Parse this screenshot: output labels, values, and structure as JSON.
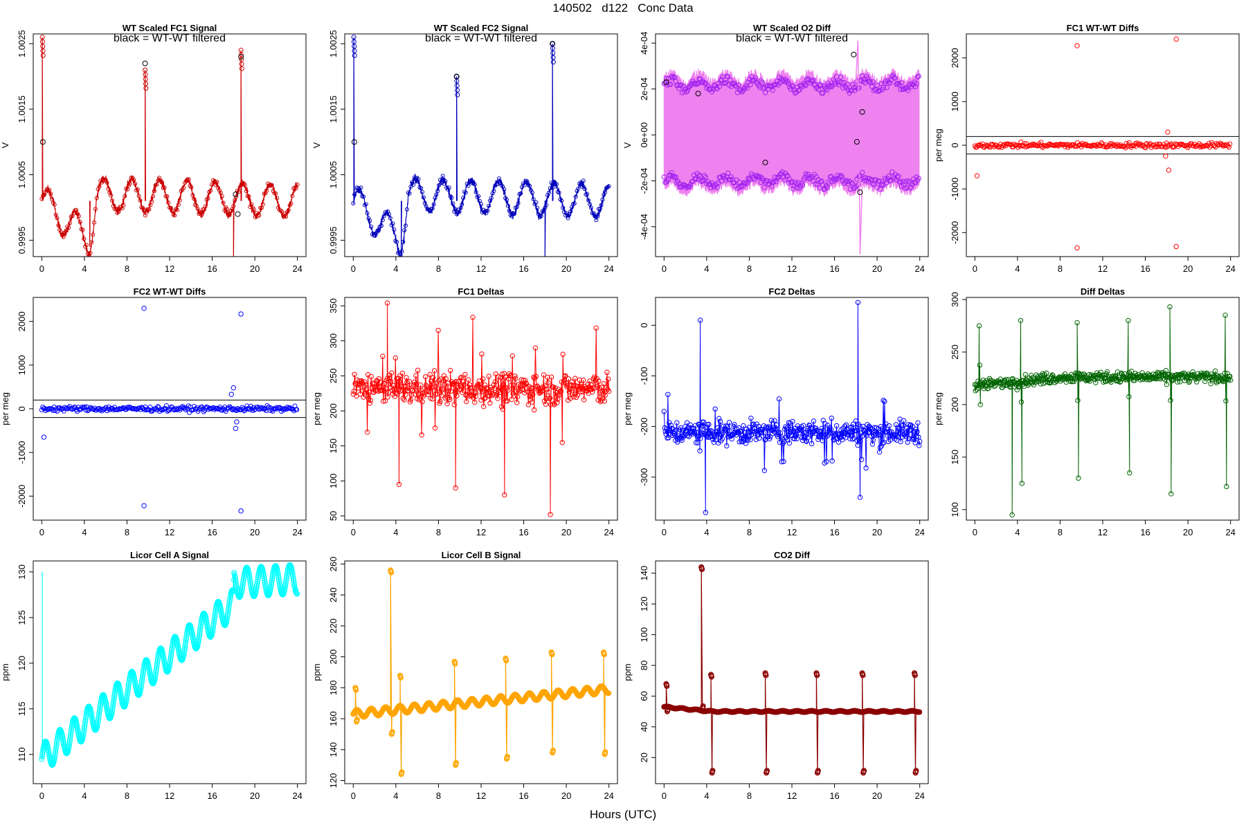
{
  "figure": {
    "title": "140502   d122   Conc Data",
    "xlabel": "Hours (UTC)"
  },
  "chart_data": [
    {
      "id": "fc1-signal",
      "type": "line",
      "title": "WT Scaled FC1 Signal",
      "subtitle": "black = WT-WT filtered",
      "ylabel": "V",
      "xlim": [
        -0.8,
        24.8
      ],
      "ylim": [
        0.99925,
        1.00265
      ],
      "xticks": [
        0,
        4,
        8,
        12,
        16,
        20,
        24
      ],
      "xtick_labels": [
        "0",
        "4",
        "8",
        "12",
        "16",
        "20",
        "24"
      ],
      "yticks": [
        0.9995,
        1.0005,
        1.0015,
        1.0025
      ],
      "ytick_labels": [
        "0.9995",
        "1.0005",
        "1.0015",
        "1.0025"
      ],
      "color": "#cc0000",
      "style": "signal",
      "base": 1.0001,
      "amp": 0.00025,
      "period": 2.6,
      "noise": 6e-05,
      "trend": [
        [
          0,
          0
        ],
        [
          4.5,
          -0.0006
        ],
        [
          5.2,
          0.0001
        ],
        [
          24,
          0
        ]
      ],
      "spikes": [
        [
          0.05,
          1.0026
        ],
        [
          9.7,
          1.0021
        ],
        [
          18.7,
          1.0024
        ]
      ],
      "dips": [
        [
          4.5,
          0.9994
        ],
        [
          18.0,
          0.9992
        ]
      ],
      "filtered": [
        [
          0.1,
          1.001
        ],
        [
          9.7,
          1.0022
        ],
        [
          18.7,
          1.0023
        ],
        [
          18.2,
          1.0002
        ],
        [
          18.4,
          0.9999
        ]
      ]
    },
    {
      "id": "fc2-signal",
      "type": "line",
      "title": "WT Scaled FC2 Signal",
      "subtitle": "black = WT-WT filtered",
      "ylabel": "V",
      "xlim": [
        -0.8,
        24.8
      ],
      "ylim": [
        0.99925,
        1.00265
      ],
      "xticks": [
        0,
        4,
        8,
        12,
        16,
        20,
        24
      ],
      "xtick_labels": [
        "0",
        "4",
        "8",
        "12",
        "16",
        "20",
        "24"
      ],
      "yticks": [
        0.9995,
        1.0005,
        1.0015,
        1.0025
      ],
      "ytick_labels": [
        "0.9995",
        "1.0005",
        "1.0015",
        "1.0025"
      ],
      "color": "#0000bb",
      "style": "signal",
      "base": 1.0001,
      "amp": 0.00025,
      "period": 2.6,
      "noise": 6e-05,
      "trend": [
        [
          0,
          0
        ],
        [
          4.5,
          -0.0006
        ],
        [
          5.2,
          0.0001
        ],
        [
          24,
          0
        ]
      ],
      "spikes": [
        [
          0.05,
          1.0026
        ],
        [
          9.7,
          1.002
        ],
        [
          18.7,
          1.0025
        ]
      ],
      "dips": [
        [
          4.5,
          0.9993
        ],
        [
          18.0,
          0.9992
        ]
      ],
      "filtered": [
        [
          0.1,
          1.001
        ],
        [
          9.7,
          1.002
        ],
        [
          18.7,
          1.0025
        ]
      ]
    },
    {
      "id": "o2-diff",
      "type": "line",
      "title": "WT Scaled O2 Diff",
      "subtitle": "black = WT-WT filtered",
      "ylabel": "V",
      "xlim": [
        -0.8,
        24.8
      ],
      "ylim": [
        -0.00053,
        0.00044
      ],
      "xticks": [
        0,
        4,
        8,
        12,
        16,
        20,
        24
      ],
      "xtick_labels": [
        "0",
        "4",
        "8",
        "12",
        "16",
        "20",
        "24"
      ],
      "yticks": [
        -0.0004,
        -0.0002,
        0,
        0.0002,
        0.0004
      ],
      "ytick_labels": [
        "-4e-04",
        "-2e-04",
        "0e+00",
        "2e-04",
        "4e-04"
      ],
      "color": "#ee82ee",
      "point_color": "#a020f0",
      "style": "band",
      "upper": 0.00023,
      "lower": -0.00021,
      "amp": 2e-05,
      "period": 2.6,
      "filtered": [
        [
          0.2,
          0.00023
        ],
        [
          3.2,
          0.00018
        ],
        [
          9.5,
          -0.00012
        ],
        [
          17.8,
          0.00035
        ],
        [
          18.1,
          -3e-05
        ],
        [
          18.4,
          -0.00025
        ],
        [
          18.6,
          0.0001
        ]
      ]
    },
    {
      "id": "fc1-wtwt",
      "type": "scatter",
      "title": "FC1 WT-WT Diffs",
      "ylabel": "per meg",
      "xlim": [
        -0.8,
        24.8
      ],
      "ylim": [
        -2550,
        2550
      ],
      "xticks": [
        0,
        4,
        8,
        12,
        16,
        20,
        24
      ],
      "xtick_labels": [
        "0",
        "4",
        "8",
        "12",
        "16",
        "20",
        "24"
      ],
      "yticks": [
        -2000,
        -1000,
        0,
        1000,
        2000
      ],
      "ytick_labels": [
        "-2000",
        "-1000",
        "0",
        "1000",
        "2000"
      ],
      "color": "#ff0000",
      "style": "diffs",
      "spread": 55,
      "hlines": [
        200,
        -200
      ],
      "outliers": [
        [
          9.6,
          2280
        ],
        [
          18.9,
          2430
        ],
        [
          9.6,
          -2350
        ],
        [
          18.9,
          -2320
        ],
        [
          0.2,
          -700
        ],
        [
          18.1,
          300
        ],
        [
          18.2,
          -570
        ],
        [
          17.9,
          -250
        ]
      ]
    },
    {
      "id": "fc2-wtwt",
      "type": "scatter",
      "title": "FC2 WT-WT Diffs",
      "ylabel": "per meg",
      "xlim": [
        -0.8,
        24.8
      ],
      "ylim": [
        -2550,
        2550
      ],
      "xticks": [
        0,
        4,
        8,
        12,
        16,
        20,
        24
      ],
      "xtick_labels": [
        "0",
        "4",
        "8",
        "12",
        "16",
        "20",
        "24"
      ],
      "yticks": [
        -2000,
        -1000,
        0,
        1000,
        2000
      ],
      "ytick_labels": [
        "-2000",
        "-1000",
        "0",
        "1000",
        "2000"
      ],
      "color": "#0000ff",
      "style": "diffs",
      "spread": 55,
      "hlines": [
        200,
        -200
      ],
      "outliers": [
        [
          9.6,
          2300
        ],
        [
          18.7,
          2170
        ],
        [
          9.6,
          -2220
        ],
        [
          18.7,
          -2340
        ],
        [
          0.2,
          -650
        ],
        [
          18.0,
          480
        ],
        [
          18.2,
          -450
        ],
        [
          17.8,
          330
        ],
        [
          18.3,
          -300
        ]
      ]
    },
    {
      "id": "fc1-deltas",
      "type": "line",
      "title": "FC1 Deltas",
      "ylabel": "per meg",
      "xlim": [
        -0.8,
        24.8
      ],
      "ylim": [
        44,
        362
      ],
      "xticks": [
        0,
        4,
        8,
        12,
        16,
        20,
        24
      ],
      "xtick_labels": [
        "0",
        "4",
        "8",
        "12",
        "16",
        "20",
        "24"
      ],
      "yticks": [
        50,
        100,
        150,
        200,
        250,
        300,
        350
      ],
      "ytick_labels": [
        "50",
        "100",
        "150",
        "200",
        "250",
        "300",
        "350"
      ],
      "color": "#ff0000",
      "style": "noisy",
      "base": 232,
      "noise": 22,
      "extremes": [
        [
          3.2,
          354
        ],
        [
          18.5,
          52
        ],
        [
          4.3,
          95
        ],
        [
          9.6,
          90
        ],
        [
          14.2,
          80
        ]
      ]
    },
    {
      "id": "fc2-deltas",
      "type": "line",
      "title": "FC2 Deltas",
      "ylabel": "per meg",
      "xlim": [
        -0.8,
        24.8
      ],
      "ylim": [
        -385,
        55
      ],
      "xticks": [
        0,
        4,
        8,
        12,
        16,
        20,
        24
      ],
      "xtick_labels": [
        "0",
        "4",
        "8",
        "12",
        "16",
        "20",
        "24"
      ],
      "yticks": [
        -300,
        -200,
        -100,
        0
      ],
      "ytick_labels": [
        "-300",
        "-200",
        "-100",
        "0"
      ],
      "color": "#0000ff",
      "style": "noisy",
      "base": -212,
      "noise": 22,
      "extremes": [
        [
          18.2,
          45
        ],
        [
          3.4,
          10
        ],
        [
          3.9,
          -370
        ],
        [
          18.4,
          -340
        ]
      ]
    },
    {
      "id": "diff-deltas",
      "type": "line",
      "title": "Diff Deltas",
      "ylabel": "per meg",
      "xlim": [
        -0.8,
        24.8
      ],
      "ylim": [
        90,
        302
      ],
      "xticks": [
        0,
        4,
        8,
        12,
        16,
        20,
        24
      ],
      "xtick_labels": [
        "0",
        "4",
        "8",
        "12",
        "16",
        "20",
        "24"
      ],
      "yticks": [
        100,
        150,
        200,
        250,
        300
      ],
      "ytick_labels": [
        "100",
        "150",
        "200",
        "250",
        "300"
      ],
      "color": "#006400",
      "style": "spiky",
      "base": 218,
      "base_end": 226,
      "noise": 5,
      "events": [
        [
          0.4,
          275,
          200
        ],
        [
          4.3,
          280,
          125
        ],
        [
          9.6,
          278,
          130
        ],
        [
          14.4,
          280,
          135
        ],
        [
          18.3,
          293,
          115
        ],
        [
          23.5,
          285,
          122
        ]
      ],
      "extra_dips": [
        [
          3.5,
          95
        ]
      ]
    },
    {
      "id": "licor-a",
      "type": "line",
      "title": "Licor Cell A Signal",
      "ylabel": "ppm",
      "xlim": [
        -0.8,
        24.8
      ],
      "ylim": [
        106.8,
        131.2
      ],
      "xticks": [
        0,
        4,
        8,
        12,
        16,
        20,
        24
      ],
      "xtick_labels": [
        "0",
        "4",
        "8",
        "12",
        "16",
        "20",
        "24"
      ],
      "yticks": [
        110,
        115,
        120,
        125,
        130
      ],
      "ytick_labels": [
        "110",
        "115",
        "120",
        "125",
        "130"
      ],
      "color": "#00ffff",
      "style": "ramp",
      "ramp": [
        [
          0,
          109.5
        ],
        [
          18,
          126.5
        ],
        [
          18.05,
          128.8
        ],
        [
          24,
          129.2
        ]
      ],
      "amp": 1.6,
      "period": 1.35,
      "spikes": [
        [
          0.05,
          130
        ]
      ]
    },
    {
      "id": "licor-b",
      "type": "line",
      "title": "Licor Cell B Signal",
      "ylabel": "ppm",
      "xlim": [
        -0.8,
        24.8
      ],
      "ylim": [
        118,
        262
      ],
      "xticks": [
        0,
        4,
        8,
        12,
        16,
        20,
        24
      ],
      "xtick_labels": [
        "0",
        "4",
        "8",
        "12",
        "16",
        "20",
        "24"
      ],
      "yticks": [
        120,
        140,
        160,
        180,
        200,
        220,
        240,
        260
      ],
      "ytick_labels": [
        "120",
        "140",
        "160",
        "180",
        "200",
        "220",
        "240",
        "260"
      ],
      "color": "#ffa500",
      "style": "ramp-events",
      "ramp": [
        [
          0,
          163
        ],
        [
          24,
          179
        ]
      ],
      "amp": 2.5,
      "period": 1.35,
      "events": [
        [
          0.2,
          180,
          158
        ],
        [
          3.5,
          256,
          150
        ],
        [
          4.4,
          188,
          124
        ],
        [
          9.5,
          197,
          130
        ],
        [
          14.3,
          199,
          134
        ],
        [
          18.6,
          203,
          138
        ],
        [
          23.5,
          203,
          137
        ]
      ]
    },
    {
      "id": "co2-diff",
      "type": "line",
      "title": "CO2 Diff",
      "ylabel": "ppm",
      "xlim": [
        -0.8,
        24.8
      ],
      "ylim": [
        3,
        148
      ],
      "xticks": [
        0,
        4,
        8,
        12,
        16,
        20,
        24
      ],
      "xtick_labels": [
        "0",
        "4",
        "8",
        "12",
        "16",
        "20",
        "24"
      ],
      "yticks": [
        20,
        40,
        60,
        80,
        100,
        120,
        140
      ],
      "ytick_labels": [
        "20",
        "40",
        "60",
        "80",
        "100",
        "120",
        "140"
      ],
      "color": "#8b0000",
      "style": "ramp-events",
      "ramp": [
        [
          0,
          53
        ],
        [
          4.5,
          50
        ],
        [
          24,
          50
        ]
      ],
      "amp": 0.4,
      "period": 1.35,
      "events": [
        [
          0.2,
          68,
          50
        ],
        [
          3.5,
          144,
          52
        ],
        [
          4.4,
          74,
          10
        ],
        [
          9.5,
          75,
          10
        ],
        [
          14.3,
          75,
          10
        ],
        [
          18.6,
          75,
          10
        ],
        [
          23.5,
          75,
          10
        ]
      ]
    }
  ]
}
